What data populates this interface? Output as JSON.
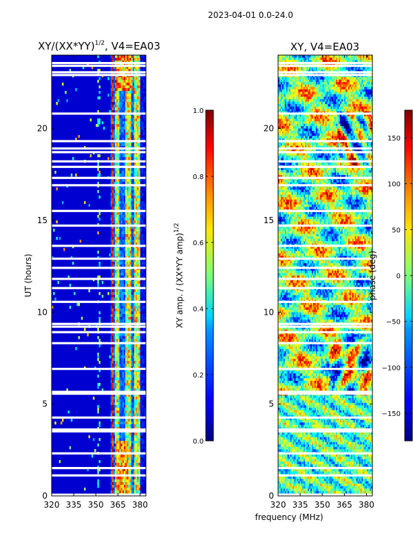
{
  "chart_data": {
    "type": "heatmap",
    "suptitle": "2023-04-01 0.0-24.0",
    "shared_xlabel": "frequency (MHz)",
    "panels": [
      {
        "id": "amp",
        "title_main": "XY/(XX*YY)",
        "title_sup": "1/2",
        "title_tail": ", V4=EA03",
        "ylabel": "UT (hours)",
        "xlim": [
          320,
          384
        ],
        "ylim": [
          0,
          24
        ],
        "xticks": [
          320,
          335,
          350,
          365,
          380
        ],
        "yticks": [
          0,
          5,
          10,
          15,
          20
        ],
        "colorbar": {
          "label_main": "XY amp. / (XX*YY amp)",
          "label_sup": "1/2",
          "range": [
            0.0,
            1.0
          ],
          "ticks": [
            "0.0",
            "0.2",
            "0.4",
            "0.6",
            "0.8",
            "1.0"
          ],
          "tick_values": [
            0.0,
            0.2,
            0.4,
            0.6,
            0.8,
            1.0
          ]
        }
      },
      {
        "id": "phase",
        "title": "XY, V4=EA03",
        "xlim": [
          320,
          384
        ],
        "ylim": [
          0,
          24
        ],
        "xticks": [
          320,
          335,
          350,
          365,
          380
        ],
        "yticks": [
          0,
          5,
          10,
          15,
          20
        ],
        "colorbar": {
          "label": "phase (deg)",
          "range": [
            -180,
            180
          ],
          "ticks": [
            "−150",
            "−100",
            "−50",
            "0",
            "50",
            "100",
            "150"
          ],
          "tick_values": [
            -150,
            -100,
            -50,
            0,
            50,
            100,
            150
          ]
        }
      }
    ],
    "flagged_ut_hours": [
      0.05,
      1.1,
      1.5,
      2.3,
      3.5,
      3.6,
      4.25,
      5.55,
      5.65,
      6.9,
      8.3,
      8.9,
      9.2,
      9.35,
      10.55,
      11.3,
      11.8,
      12.4,
      12.9,
      13.6,
      14.7,
      15.5,
      16.9,
      17.3,
      17.9,
      18.2,
      18.7,
      18.9,
      19.3,
      20.8,
      22.9,
      23.05,
      23.4,
      23.55
    ],
    "amp_high_bands_mhz": [
      [
        363.5,
        366.2
      ],
      [
        370.5,
        373.5
      ],
      [
        376.5,
        379.5
      ]
    ],
    "amp_rfi_cutoff_mhz": 360.5
  }
}
